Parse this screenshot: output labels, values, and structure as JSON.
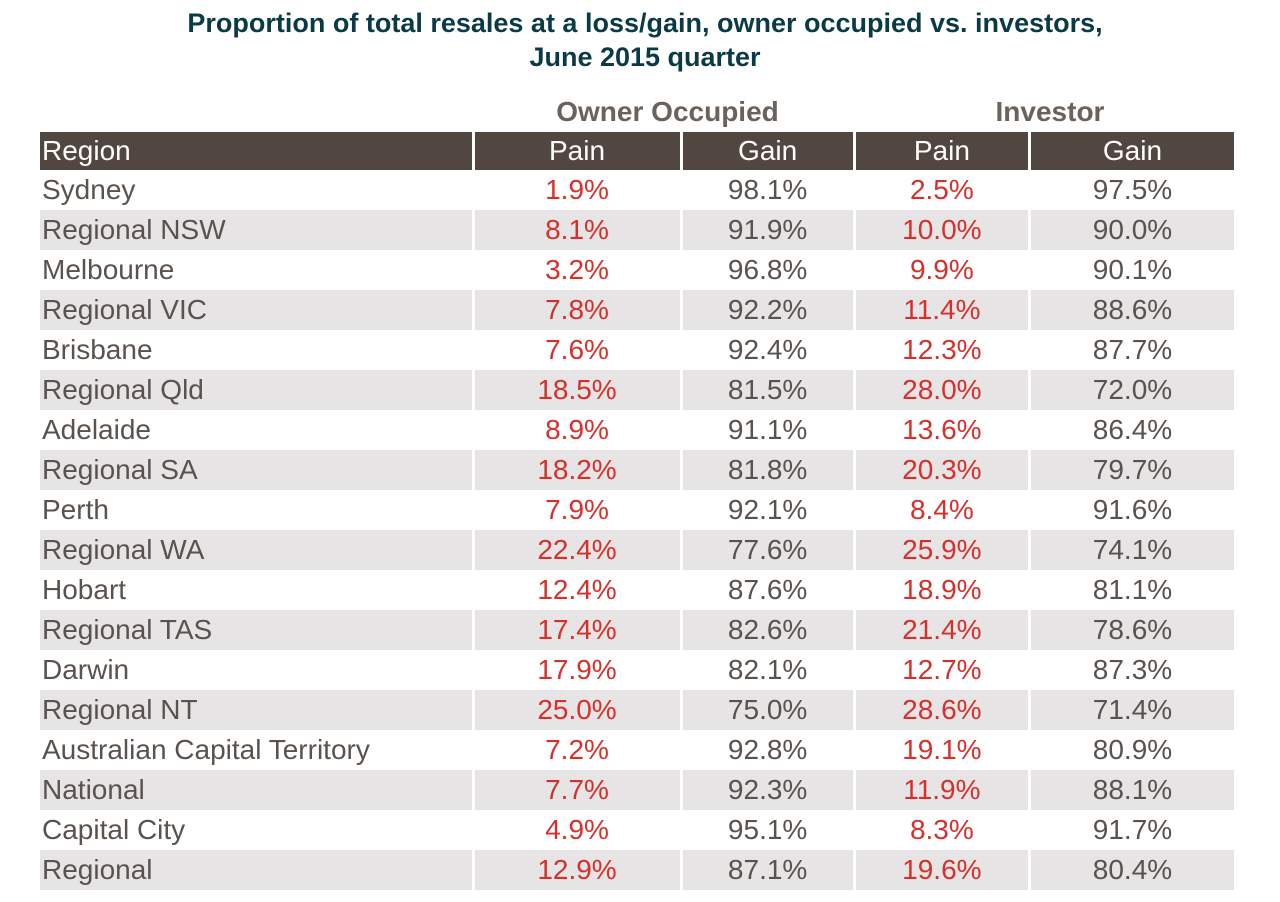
{
  "title": {
    "line1": "Proportion of total resales at a loss/gain, owner occupied vs. investors,",
    "line2": "June 2015 quarter"
  },
  "groups": {
    "owner": "Owner Occupied",
    "investor": "Investor"
  },
  "columns": {
    "region": "Region",
    "owner_pain": "Pain",
    "owner_gain": "Gain",
    "investor_pain": "Pain",
    "investor_gain": "Gain"
  },
  "colors": {
    "title": "#0b3a47",
    "header_bg": "#524740",
    "pain_text": "#d6302c",
    "stripe": "#e6e4e4"
  },
  "rows": [
    {
      "region": "Sydney",
      "owner_pain": "1.9%",
      "owner_gain": "98.1%",
      "investor_pain": "2.5%",
      "investor_gain": "97.5%"
    },
    {
      "region": "Regional NSW",
      "owner_pain": "8.1%",
      "owner_gain": "91.9%",
      "investor_pain": "10.0%",
      "investor_gain": "90.0%"
    },
    {
      "region": "Melbourne",
      "owner_pain": "3.2%",
      "owner_gain": "96.8%",
      "investor_pain": "9.9%",
      "investor_gain": "90.1%"
    },
    {
      "region": "Regional VIC",
      "owner_pain": "7.8%",
      "owner_gain": "92.2%",
      "investor_pain": "11.4%",
      "investor_gain": "88.6%"
    },
    {
      "region": "Brisbane",
      "owner_pain": "7.6%",
      "owner_gain": "92.4%",
      "investor_pain": "12.3%",
      "investor_gain": "87.7%"
    },
    {
      "region": "Regional Qld",
      "owner_pain": "18.5%",
      "owner_gain": "81.5%",
      "investor_pain": "28.0%",
      "investor_gain": "72.0%"
    },
    {
      "region": "Adelaide",
      "owner_pain": "8.9%",
      "owner_gain": "91.1%",
      "investor_pain": "13.6%",
      "investor_gain": "86.4%"
    },
    {
      "region": "Regional SA",
      "owner_pain": "18.2%",
      "owner_gain": "81.8%",
      "investor_pain": "20.3%",
      "investor_gain": "79.7%"
    },
    {
      "region": "Perth",
      "owner_pain": "7.9%",
      "owner_gain": "92.1%",
      "investor_pain": "8.4%",
      "investor_gain": "91.6%"
    },
    {
      "region": "Regional WA",
      "owner_pain": "22.4%",
      "owner_gain": "77.6%",
      "investor_pain": "25.9%",
      "investor_gain": "74.1%"
    },
    {
      "region": "Hobart",
      "owner_pain": "12.4%",
      "owner_gain": "87.6%",
      "investor_pain": "18.9%",
      "investor_gain": "81.1%"
    },
    {
      "region": "Regional TAS",
      "owner_pain": "17.4%",
      "owner_gain": "82.6%",
      "investor_pain": "21.4%",
      "investor_gain": "78.6%"
    },
    {
      "region": "Darwin",
      "owner_pain": "17.9%",
      "owner_gain": "82.1%",
      "investor_pain": "12.7%",
      "investor_gain": "87.3%"
    },
    {
      "region": "Regional NT",
      "owner_pain": "25.0%",
      "owner_gain": "75.0%",
      "investor_pain": "28.6%",
      "investor_gain": "71.4%"
    },
    {
      "region": "Australian Capital Territory",
      "owner_pain": "7.2%",
      "owner_gain": "92.8%",
      "investor_pain": "19.1%",
      "investor_gain": "80.9%"
    },
    {
      "region": "National",
      "owner_pain": "7.7%",
      "owner_gain": "92.3%",
      "investor_pain": "11.9%",
      "investor_gain": "88.1%"
    },
    {
      "region": "Capital City",
      "owner_pain": "4.9%",
      "owner_gain": "95.1%",
      "investor_pain": "8.3%",
      "investor_gain": "91.7%"
    },
    {
      "region": "Regional",
      "owner_pain": "12.9%",
      "owner_gain": "87.1%",
      "investor_pain": "19.6%",
      "investor_gain": "80.4%"
    }
  ]
}
